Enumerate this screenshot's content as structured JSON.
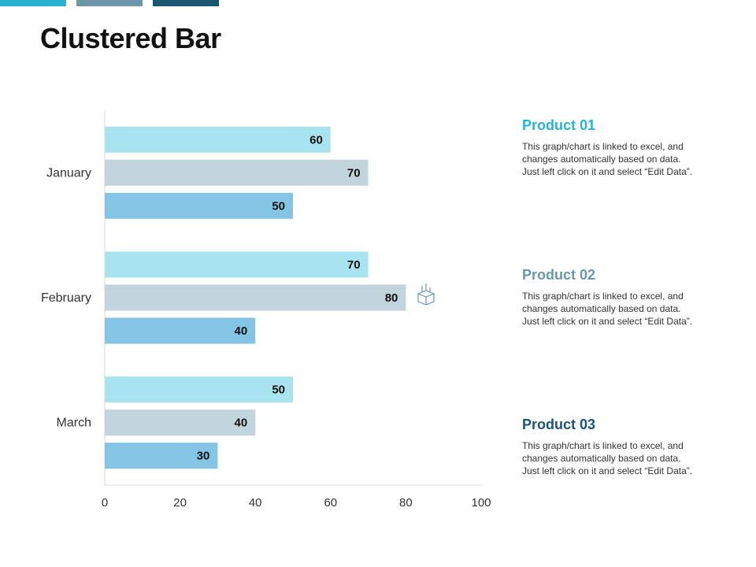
{
  "colors": {
    "accent_1": "#2ab3d1",
    "accent_2": "#6b97a8",
    "accent_3": "#1a5670",
    "product_01": "#a8e4ef",
    "product_02": "#c2d4dc",
    "product_03": "#84c4e4"
  },
  "title": "Clustered Bar",
  "legend": [
    {
      "title": "Product 01",
      "color": "#2ab3d1",
      "desc_lines": [
        "This graph/chart is linked to excel, and",
        "changes automatically based on data.",
        "Just left click on it and select “Edit Data”."
      ]
    },
    {
      "title": "Product 02",
      "color": "#6b97a8",
      "desc_lines": [
        "This graph/chart is linked to excel, and",
        "changes automatically based on data.",
        "Just left click on it and select “Edit Data”."
      ]
    },
    {
      "title": "Product 03",
      "color": "#1a5670",
      "desc_lines": [
        "This graph/chart is linked to excel, and",
        "changes automatically based on data.",
        "Just left click on it and select “Edit Data”."
      ]
    }
  ],
  "chart_data": {
    "type": "bar",
    "orientation": "horizontal",
    "categories": [
      "January",
      "February",
      "March"
    ],
    "series": [
      {
        "name": "Product 01",
        "values": [
          60,
          70,
          50
        ]
      },
      {
        "name": "Product 02",
        "values": [
          70,
          80,
          40
        ]
      },
      {
        "name": "Product 03",
        "values": [
          50,
          40,
          30
        ]
      }
    ],
    "xlim": [
      0,
      100
    ],
    "xticks": [
      0,
      20,
      40,
      60,
      80,
      100
    ],
    "title": "",
    "xlabel": "",
    "ylabel": "",
    "data_labels": true,
    "grid": false
  }
}
